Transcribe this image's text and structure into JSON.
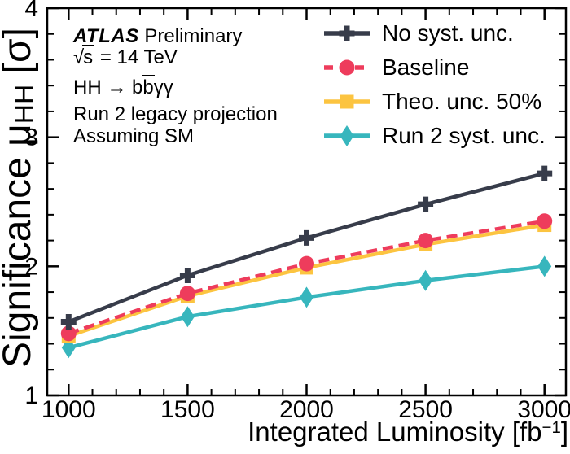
{
  "figure": {
    "background": "#ffffff"
  },
  "annotations": {
    "atlas": "ATLAS",
    "preliminary": " Preliminary",
    "sqrt_sign": "√",
    "sqrt_arg": "s",
    "energy": " = 14 TeV",
    "process_pre": "HH → b",
    "process_bbar": "b",
    "process_post": "γγ",
    "projection": "Run 2 legacy projection",
    "assumption": "Assuming SM"
  },
  "axes": {
    "y_label_pre": "Significance μ",
    "y_label_sub": "HH",
    "y_label_post": " [σ]",
    "x_label_pre": "Integrated Luminosity [fb",
    "x_label_sup": "−1",
    "x_label_close": "]"
  },
  "chart_data": {
    "type": "line",
    "title": "",
    "xlabel": "Integrated Luminosity [fb⁻¹]",
    "ylabel": "Significance μHH [σ]",
    "x": [
      1000,
      1500,
      2000,
      2500,
      3000
    ],
    "series": [
      {
        "name": "No syst. unc.",
        "color": "#373c4a",
        "marker": "cross",
        "dash": "solid",
        "values": [
          1.57,
          1.93,
          2.22,
          2.48,
          2.72
        ]
      },
      {
        "name": "Baseline",
        "color": "#ee3c5c",
        "marker": "circle",
        "dash": "dashed",
        "values": [
          1.48,
          1.79,
          2.02,
          2.2,
          2.35
        ]
      },
      {
        "name": "Theo. unc. 50%",
        "color": "#fcc440",
        "marker": "square",
        "dash": "solid",
        "values": [
          1.46,
          1.77,
          1.99,
          2.17,
          2.32
        ]
      },
      {
        "name": "Run 2 syst. unc.",
        "color": "#37b6bd",
        "marker": "diamond",
        "dash": "solid",
        "values": [
          1.37,
          1.61,
          1.76,
          1.89,
          2.0
        ]
      }
    ],
    "xlim": [
      910,
      3090
    ],
    "ylim": [
      1,
      4
    ],
    "x_major_ticks": [
      1000,
      1500,
      2000,
      2500,
      3000
    ],
    "x_minor_step": 100,
    "y_major_ticks": [
      1,
      2,
      3,
      4
    ],
    "y_minor_step": 0.2,
    "grid": false,
    "legend_position": "top-right",
    "frame_color": "#000000",
    "tick_label_color": "#000000"
  }
}
